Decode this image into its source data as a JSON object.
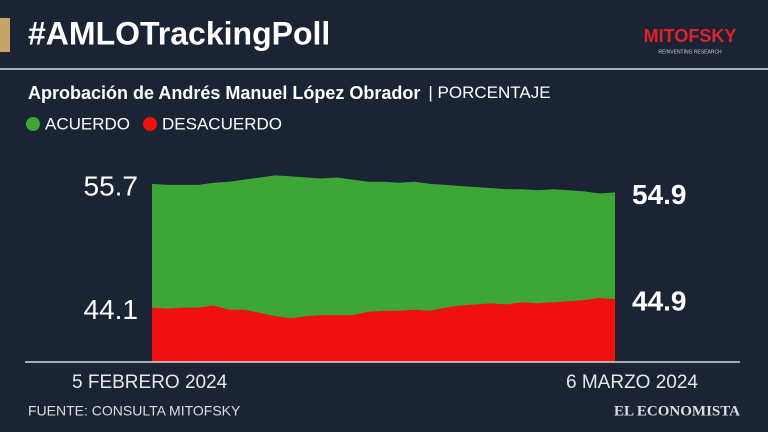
{
  "chart_data": {
    "type": "area",
    "title": "#AMLOTrackingPoll",
    "subtitle": "Aprobación de Andrés Manuel López Obrador",
    "unit_label": "| PORCENTAJE",
    "source": "FUENTE: CONSULTA MITOFSKY",
    "brand": {
      "name": "MITOFSKY",
      "tagline": "REINVENTING RESEARCH",
      "publisher": "EL ECONOMISTA"
    },
    "categories": [
      "5 FEBRERO 2024",
      null,
      null,
      null,
      null,
      null,
      null,
      null,
      null,
      null,
      null,
      null,
      null,
      null,
      null,
      null,
      null,
      null,
      null,
      null,
      null,
      null,
      null,
      null,
      null,
      null,
      null,
      null,
      null,
      null,
      "6 MARZO 2024"
    ],
    "series": [
      {
        "name": "ACUERDO",
        "color": "#3ea637",
        "values": [
          55.7,
          55.6,
          55.6,
          55.6,
          55.8,
          55.9,
          56.1,
          56.3,
          56.5,
          56.4,
          56.3,
          56.2,
          56.3,
          56.1,
          55.9,
          55.9,
          55.8,
          55.9,
          55.7,
          55.6,
          55.5,
          55.4,
          55.3,
          55.2,
          55.2,
          55.1,
          55.2,
          55.1,
          55.0,
          54.8,
          54.9
        ]
      },
      {
        "name": "DESACUERDO",
        "color": "#f01010",
        "values": [
          44.1,
          44.0,
          44.1,
          44.1,
          44.3,
          43.9,
          43.9,
          43.6,
          43.3,
          43.1,
          43.3,
          43.4,
          43.4,
          43.4,
          43.7,
          43.8,
          43.8,
          43.9,
          43.8,
          44.1,
          44.3,
          44.4,
          44.5,
          44.4,
          44.6,
          44.5,
          44.6,
          44.7,
          44.8,
          45.0,
          44.9
        ]
      }
    ],
    "ylim": [
      39,
      57
    ]
  }
}
